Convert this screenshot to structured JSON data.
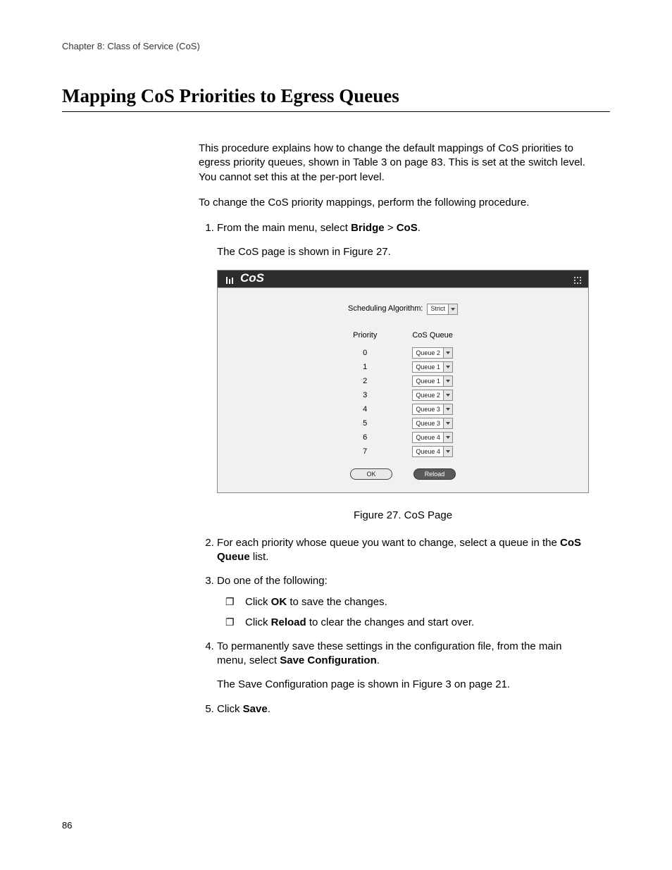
{
  "header": {
    "chapter": "Chapter 8: Class of Service (CoS)"
  },
  "section": {
    "title": "Mapping CoS Priorities to Egress Queues"
  },
  "intro": {
    "p1": "This procedure explains how to change the default mappings of CoS priorities to egress priority queues, shown in Table 3 on page 83. This is set at the switch level. You cannot set this at the per-port level.",
    "p2": "To change the CoS priority mappings, perform the following procedure."
  },
  "steps": {
    "s1_pre": "From the main menu, select ",
    "s1_b1": "Bridge",
    "s1_mid": " > ",
    "s1_b2": "CoS",
    "s1_post": ".",
    "s1_sub": "The CoS page is shown in Figure 27.",
    "s2_pre": "For each priority whose queue you want to change, select a queue in the ",
    "s2_b": "CoS Queue",
    "s2_post": " list.",
    "s3": "Do one of the following:",
    "s3a_pre": "Click ",
    "s3a_b": "OK",
    "s3a_post": " to save the changes.",
    "s3b_pre": "Click ",
    "s3b_b": "Reload",
    "s3b_post": " to clear the changes and start over.",
    "s4_pre": "To permanently save these settings in the configuration file, from the main menu, select ",
    "s4_b": "Save Configuration",
    "s4_post": ".",
    "s4_sub": "The Save Configuration page is shown in Figure 3 on page 21.",
    "s5_pre": "Click ",
    "s5_b": "Save",
    "s5_post": "."
  },
  "figure": {
    "caption": "Figure 27. CoS Page"
  },
  "cos": {
    "title": "CoS",
    "sched_label": "Scheduling Algorithm:",
    "sched_value": "Strict",
    "col_priority": "Priority",
    "col_queue": "CoS Queue",
    "rows": [
      {
        "priority": "0",
        "queue": "Queue 2"
      },
      {
        "priority": "1",
        "queue": "Queue 1"
      },
      {
        "priority": "2",
        "queue": "Queue 1"
      },
      {
        "priority": "3",
        "queue": "Queue 2"
      },
      {
        "priority": "4",
        "queue": "Queue 3"
      },
      {
        "priority": "5",
        "queue": "Queue 3"
      },
      {
        "priority": "6",
        "queue": "Queue 4"
      },
      {
        "priority": "7",
        "queue": "Queue 4"
      }
    ],
    "btn_ok": "OK",
    "btn_reload": "Reload"
  },
  "page_number": "86",
  "style": {
    "bg": "#ffffff",
    "text": "#000000",
    "cos_header_bg": "#2c2c2c",
    "cos_body_bg": "#f1f1f1",
    "select_border": "#888888",
    "btn_ok_bg": "#e9e9e9",
    "btn_reload_bg": "#5a5a5a"
  }
}
